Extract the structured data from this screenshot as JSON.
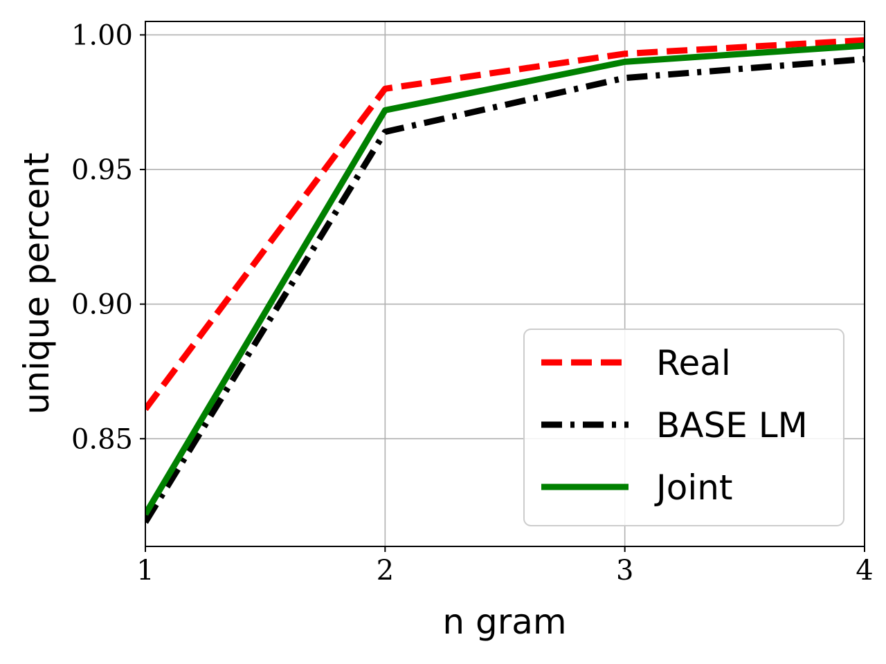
{
  "chart_data": {
    "type": "line",
    "title": "",
    "xlabel": "n gram",
    "ylabel": "unique percent",
    "x": [
      1,
      2,
      3,
      4
    ],
    "xlim": [
      1,
      4
    ],
    "ylim": [
      0.81,
      1.005
    ],
    "xticks": [
      "1",
      "2",
      "3",
      "4"
    ],
    "yticks": [
      {
        "value": 0.85,
        "label": "0.85"
      },
      {
        "value": 0.9,
        "label": "0.90"
      },
      {
        "value": 0.95,
        "label": "0.95"
      },
      {
        "value": 1.0,
        "label": "1.00"
      }
    ],
    "grid": true,
    "legend_position": "bottom-right",
    "series": [
      {
        "name": "Real",
        "values": [
          0.861,
          0.98,
          0.993,
          0.998
        ],
        "color": "#ff0000",
        "style": "dashed"
      },
      {
        "name": "BASE LM",
        "values": [
          0.819,
          0.964,
          0.984,
          0.991
        ],
        "color": "#000000",
        "style": "dashdot"
      },
      {
        "name": "Joint",
        "values": [
          0.822,
          0.972,
          0.99,
          0.996
        ],
        "color": "#008000",
        "style": "solid"
      }
    ]
  }
}
